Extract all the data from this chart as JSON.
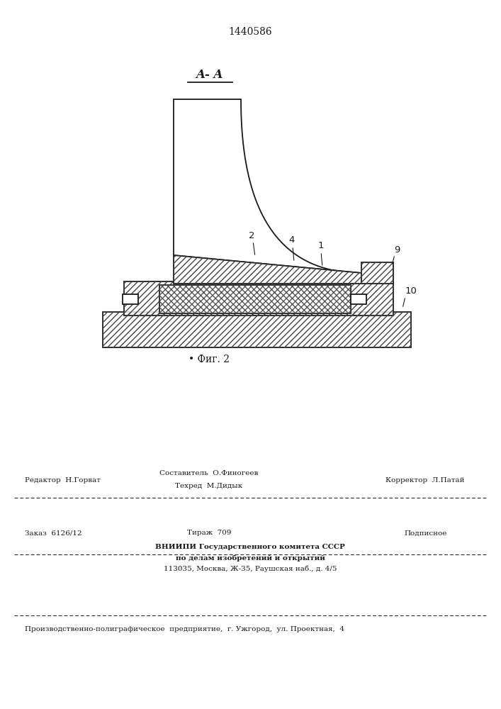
{
  "patent_number": "1440586",
  "section_label": "A- A",
  "fig_label": "• Фиг. 2",
  "footer": {
    "editor": "Редактор  Н.Горват",
    "composer": "Составитель  О.Финогеев",
    "techred": "Техред  М.Дидык",
    "corrector": "Корректор  Л.Патай",
    "order": "Заказ  6126/12",
    "tirazh": "Тираж  709",
    "podpisnoe": "Подписное",
    "vniippi_line1": "ВНИИПИ Государственного комитета СССР",
    "vniippi_line2": "по делам изобретений и открытий",
    "vniippi_line3": "113035, Москва, Ж-35, Раушская наб., д. 4/5",
    "production": "Производственно-полиграфическое  предприятие,  г. Ужгород,  ул. Проектная,  4"
  },
  "bg_color": "#ffffff",
  "line_color": "#1a1a1a"
}
